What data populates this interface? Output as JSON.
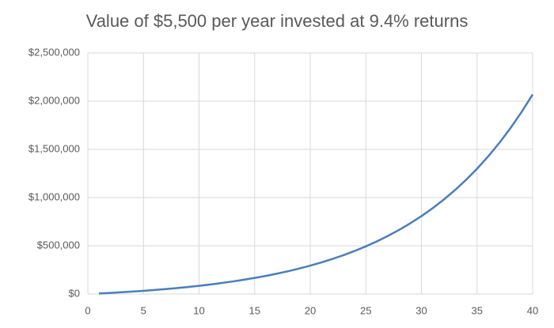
{
  "chart_data": {
    "type": "line",
    "title": "Value of $5,500 per year invested at 9.4% returns",
    "x": [
      1,
      2,
      3,
      4,
      5,
      6,
      7,
      8,
      9,
      10,
      11,
      12,
      13,
      14,
      15,
      16,
      17,
      18,
      19,
      20,
      21,
      22,
      23,
      24,
      25,
      26,
      27,
      28,
      29,
      30,
      31,
      32,
      33,
      34,
      35,
      36,
      37,
      38,
      39,
      40
    ],
    "values": [
      5500,
      11517,
      18100,
      25301,
      33179,
      41798,
      51227,
      61542,
      72827,
      85173,
      98679,
      113455,
      129620,
      147304,
      166651,
      187816,
      210971,
      236302,
      264014,
      294331,
      327498,
      363783,
      403479,
      446906,
      494415,
      546390,
      603251,
      665457,
      733510,
      807960,
      889408,
      978512,
      1075992,
      1182635,
      1299303,
      1426937,
      1566569,
      1719326,
      1886443,
      2069269
    ],
    "color": "#4a7ebb",
    "xlim": [
      0,
      40
    ],
    "xticks": [
      0,
      5,
      10,
      15,
      20,
      25,
      30,
      35,
      40
    ],
    "ylim": [
      0,
      2500000
    ],
    "yticks": [
      {
        "value": 0,
        "label": "$0"
      },
      {
        "value": 500000,
        "label": "$500,000"
      },
      {
        "value": 1000000,
        "label": "$1,000,000"
      },
      {
        "value": 1500000,
        "label": "$1,500,000"
      },
      {
        "value": 2000000,
        "label": "$2,000,000"
      },
      {
        "value": 2500000,
        "label": "$2,500,000"
      }
    ],
    "grid": true
  }
}
